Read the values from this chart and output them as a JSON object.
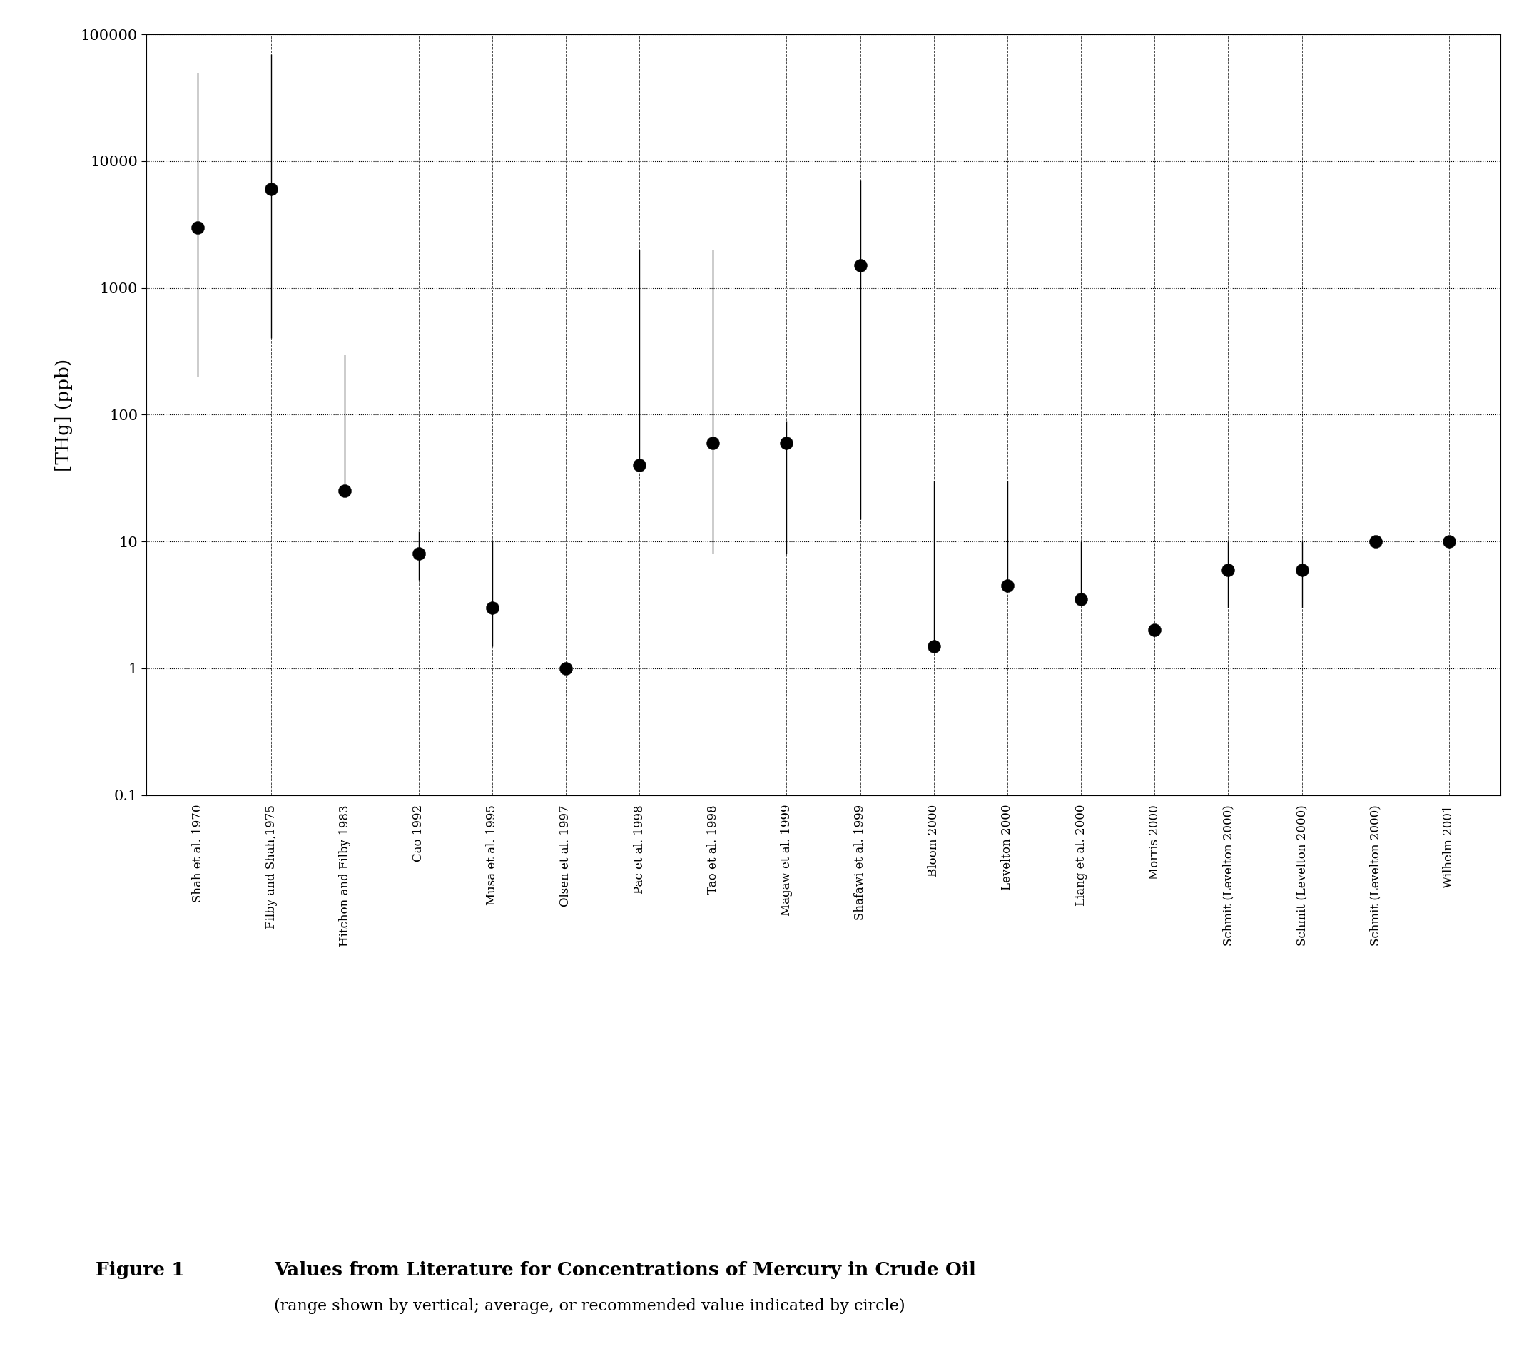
{
  "categories": [
    "Shah et al. 1970",
    "Filby and Shah,1975",
    "Hitchon and Filby 1983",
    "Cao 1992",
    "Musa et al. 1995",
    "Olsen et al. 1997",
    "Pac et al. 1998",
    "Tao et al. 1998",
    "Magaw et al. 1999",
    "Shafawi et al. 1999",
    "Bloom 2000",
    "Levelton 2000",
    "Liang et al. 2000",
    "Morris 2000",
    "Schmit (Levelton 2000)",
    "Schmit (Levelton 2000)",
    "Schmit (Levelton 2000)",
    "Wilhelm 2001"
  ],
  "entries": [
    {
      "point": 3000,
      "lo": 200,
      "hi": 50000
    },
    {
      "point": 6000,
      "lo": 400,
      "hi": 70000
    },
    {
      "point": 25,
      "lo": null,
      "hi": 300
    },
    {
      "point": 8,
      "lo": 5,
      "hi": 12
    },
    {
      "point": 3,
      "lo": 1.5,
      "hi": 10
    },
    {
      "point": 1,
      "lo": null,
      "hi": null
    },
    {
      "point": 40,
      "lo": null,
      "hi": 2000
    },
    {
      "point": 60,
      "lo": 8,
      "hi": 2000
    },
    {
      "point": 60,
      "lo": 8,
      "hi": 90
    },
    {
      "point": 1500,
      "lo": 15,
      "hi": 7000
    },
    {
      "point": 1.5,
      "lo": null,
      "hi": 30
    },
    {
      "point": 4.5,
      "lo": null,
      "hi": 30
    },
    {
      "point": 3.5,
      "lo": null,
      "hi": 10
    },
    {
      "point": 2,
      "lo": null,
      "hi": null
    },
    {
      "point": 6,
      "lo": 3,
      "hi": 10
    },
    {
      "point": 6,
      "lo": 3,
      "hi": 10
    },
    {
      "point": 10,
      "lo": null,
      "hi": null
    },
    {
      "point": 10,
      "lo": null,
      "hi": null
    }
  ],
  "ylabel": "[THg] (ppb)",
  "ylim_low": 0.1,
  "ylim_high": 100000,
  "yticks": [
    0.1,
    1,
    10,
    100,
    1000,
    10000,
    100000
  ],
  "ytick_labels": [
    "0.1",
    "1",
    "10",
    "100",
    "1000",
    "10000",
    "100000"
  ],
  "figure_label": "Figure 1",
  "figure_title": "Values from Literature for Concentrations of Mercury in Crude Oil",
  "figure_subtitle": "(range shown by vertical; average, or recommended value indicated by circle)"
}
